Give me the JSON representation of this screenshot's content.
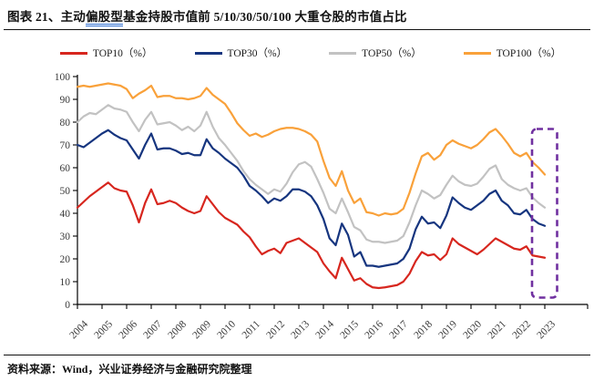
{
  "title": {
    "prefix": "图表 21、主动",
    "underlined": "偏股型",
    "suffix": "基金持股市值前 5/10/30/50/100 大重仓股的市值占比"
  },
  "source_note": "资料来源：Wind，兴业证券经济与金融研究院整理",
  "colors": {
    "top10": "#d7261e",
    "top30": "#16357f",
    "top50": "#c2c2c2",
    "top100": "#f9a13a",
    "highlight_box": "#7030a0",
    "axis": "#000000",
    "tick_label": "#3a3a3a"
  },
  "chart_data": {
    "type": "line",
    "x_frequency": "quarterly",
    "x_start": "2004Q1",
    "x_end": "2023Q1",
    "categories": [
      "2004",
      "2005",
      "2006",
      "2007",
      "2008",
      "2009",
      "2010",
      "2011",
      "2012",
      "2013",
      "2014",
      "2015",
      "2016",
      "2017",
      "2018",
      "2019",
      "2020",
      "2021",
      "2022",
      "2023"
    ],
    "ylim": [
      0,
      100
    ],
    "ytick_step": 10,
    "grid": false,
    "legend_position": "top",
    "series": [
      {
        "name": "TOP10（%）",
        "color": "#d7261e",
        "values": [
          42.5,
          45,
          47.5,
          49.5,
          51.5,
          53.5,
          51,
          50,
          49.5,
          43.5,
          36,
          44.5,
          50.5,
          44,
          44.5,
          45.5,
          44.5,
          42.5,
          41,
          40,
          41,
          47.5,
          44,
          40.5,
          38,
          36.5,
          35,
          32,
          29.5,
          25.5,
          22,
          23.5,
          24.5,
          22.5,
          27,
          28,
          29,
          27,
          25,
          23,
          18,
          14.5,
          11.5,
          20.5,
          15.5,
          10.5,
          11.5,
          9,
          7.5,
          7.2,
          7.5,
          8,
          8.5,
          10,
          13.5,
          19,
          23,
          21.5,
          22,
          19.5,
          22,
          29,
          26.5,
          25,
          23.5,
          22,
          24,
          26.5,
          29,
          27.5,
          26,
          24.5,
          24,
          25.5,
          21.5,
          21,
          20.5
        ]
      },
      {
        "name": "TOP30（%）",
        "color": "#16357f",
        "values": [
          70,
          69,
          71,
          73,
          75,
          76.5,
          74.5,
          73,
          72,
          68,
          64,
          70,
          75,
          68,
          68.5,
          68.5,
          67.5,
          66,
          66.5,
          65.5,
          65.5,
          72.5,
          68.5,
          66.5,
          64,
          62,
          60,
          56.5,
          52,
          50,
          47.5,
          44.5,
          46.5,
          45.5,
          47.5,
          50.5,
          50.5,
          49.5,
          47.5,
          43.5,
          37.5,
          29,
          26,
          35.5,
          30.5,
          21,
          23,
          17,
          17,
          16.5,
          17,
          17.5,
          18,
          20,
          24.5,
          33,
          38.5,
          35.5,
          36,
          33.5,
          39,
          47,
          44.5,
          42.5,
          41.5,
          43.5,
          45.5,
          48.5,
          50,
          45.5,
          43.5,
          40,
          39.5,
          41.5,
          37.5,
          35.5,
          34.5
        ]
      },
      {
        "name": "TOP50（%）",
        "color": "#c2c2c2",
        "values": [
          80,
          82.5,
          84,
          83.5,
          85.5,
          87.5,
          86,
          85.5,
          84.5,
          80,
          76,
          81,
          84.5,
          79,
          79.5,
          80,
          78.5,
          76.5,
          78,
          76,
          78.5,
          84.5,
          78,
          73,
          70,
          66.5,
          63,
          58.5,
          55,
          52.5,
          50.5,
          48.5,
          50.5,
          49.5,
          53,
          58,
          61.5,
          62.5,
          60.5,
          55,
          49,
          42,
          40,
          46.5,
          40.5,
          34,
          32.5,
          28.5,
          27.5,
          27.5,
          27,
          27.5,
          28,
          30,
          36,
          43.5,
          50,
          48.5,
          46.5,
          48,
          52.5,
          56.5,
          54,
          52.5,
          52,
          53,
          56,
          59.5,
          61,
          55,
          52.5,
          51,
          50,
          51,
          47,
          44.5,
          42.5
        ]
      },
      {
        "name": "TOP100（%）",
        "color": "#f9a13a",
        "values": [
          95.5,
          96,
          95.5,
          96,
          96.5,
          97,
          96.5,
          96,
          94.5,
          90.5,
          92.5,
          94,
          96,
          91,
          91.5,
          91.5,
          90.5,
          90.5,
          90,
          90.5,
          91.5,
          95,
          92,
          90,
          88,
          84,
          79.5,
          76.5,
          74,
          75,
          73.5,
          74.5,
          76,
          77,
          77.5,
          77.5,
          77,
          76,
          74.5,
          71.5,
          63,
          55.5,
          52,
          58.5,
          50,
          44.5,
          46.5,
          40.5,
          40,
          39,
          40,
          39.5,
          40,
          42,
          49,
          57.5,
          65,
          66.5,
          63.5,
          65.5,
          70,
          72,
          70.5,
          69.5,
          68.5,
          70,
          72.5,
          75.5,
          77,
          74,
          70.5,
          66.5,
          65,
          66.5,
          62.5,
          60,
          57
        ]
      }
    ],
    "annotation_box": {
      "shape": "dashed-rounded-rect",
      "color": "#7030a0",
      "x_quarters": [
        "2022Q3",
        "2023Q1"
      ],
      "y_range": [
        3,
        77
      ]
    }
  }
}
